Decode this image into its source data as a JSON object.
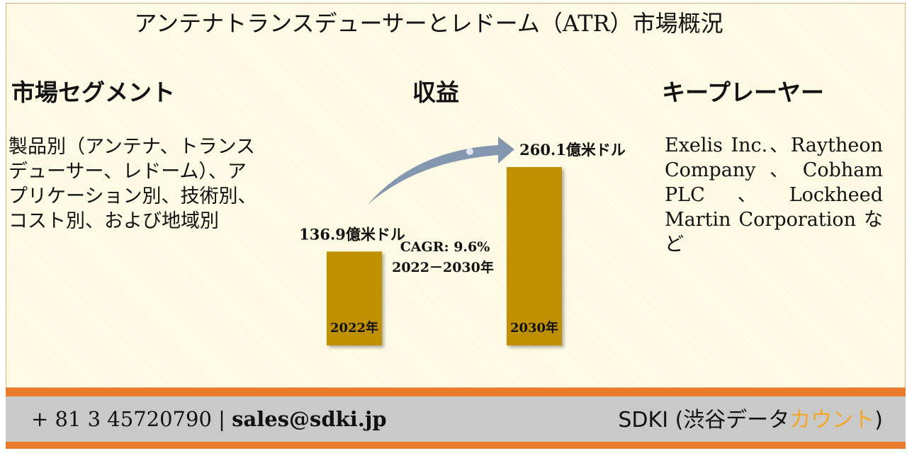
{
  "title": "アンテナトランスデューサーとレドーム（ATR）市場概況",
  "segment": {
    "heading": "市場セグメント",
    "text": "製品別（アンテナ、トランスデューサー、レドーム）、アプリケーション別、技術別、コスト別、および地域別"
  },
  "revenue": {
    "heading": "収益"
  },
  "key_players": {
    "heading": "キープレーヤー",
    "text": "Exelis Inc.、Raytheon Company、Cobham PLC、Lockheed Martin Corporation など"
  },
  "chart_data": {
    "type": "bar",
    "categories": [
      "2022年",
      "2030年"
    ],
    "values": [
      136.9,
      260.1
    ],
    "value_labels": [
      "136.9億米ドル",
      "260.1億米ドル"
    ],
    "annotation": [
      "CAGR: 9.6%",
      "2022－2030年"
    ],
    "colors": {
      "bar": "#bf9000",
      "arrow": "#8497b0"
    }
  },
  "footer": {
    "phone": "+ 81 3 45720790",
    "separator": "|",
    "email": "sales@sdki.jp",
    "brand_prefix": "SDKI (渋谷データ",
    "brand_accent": "カウント",
    "brand_suffix": ")"
  }
}
